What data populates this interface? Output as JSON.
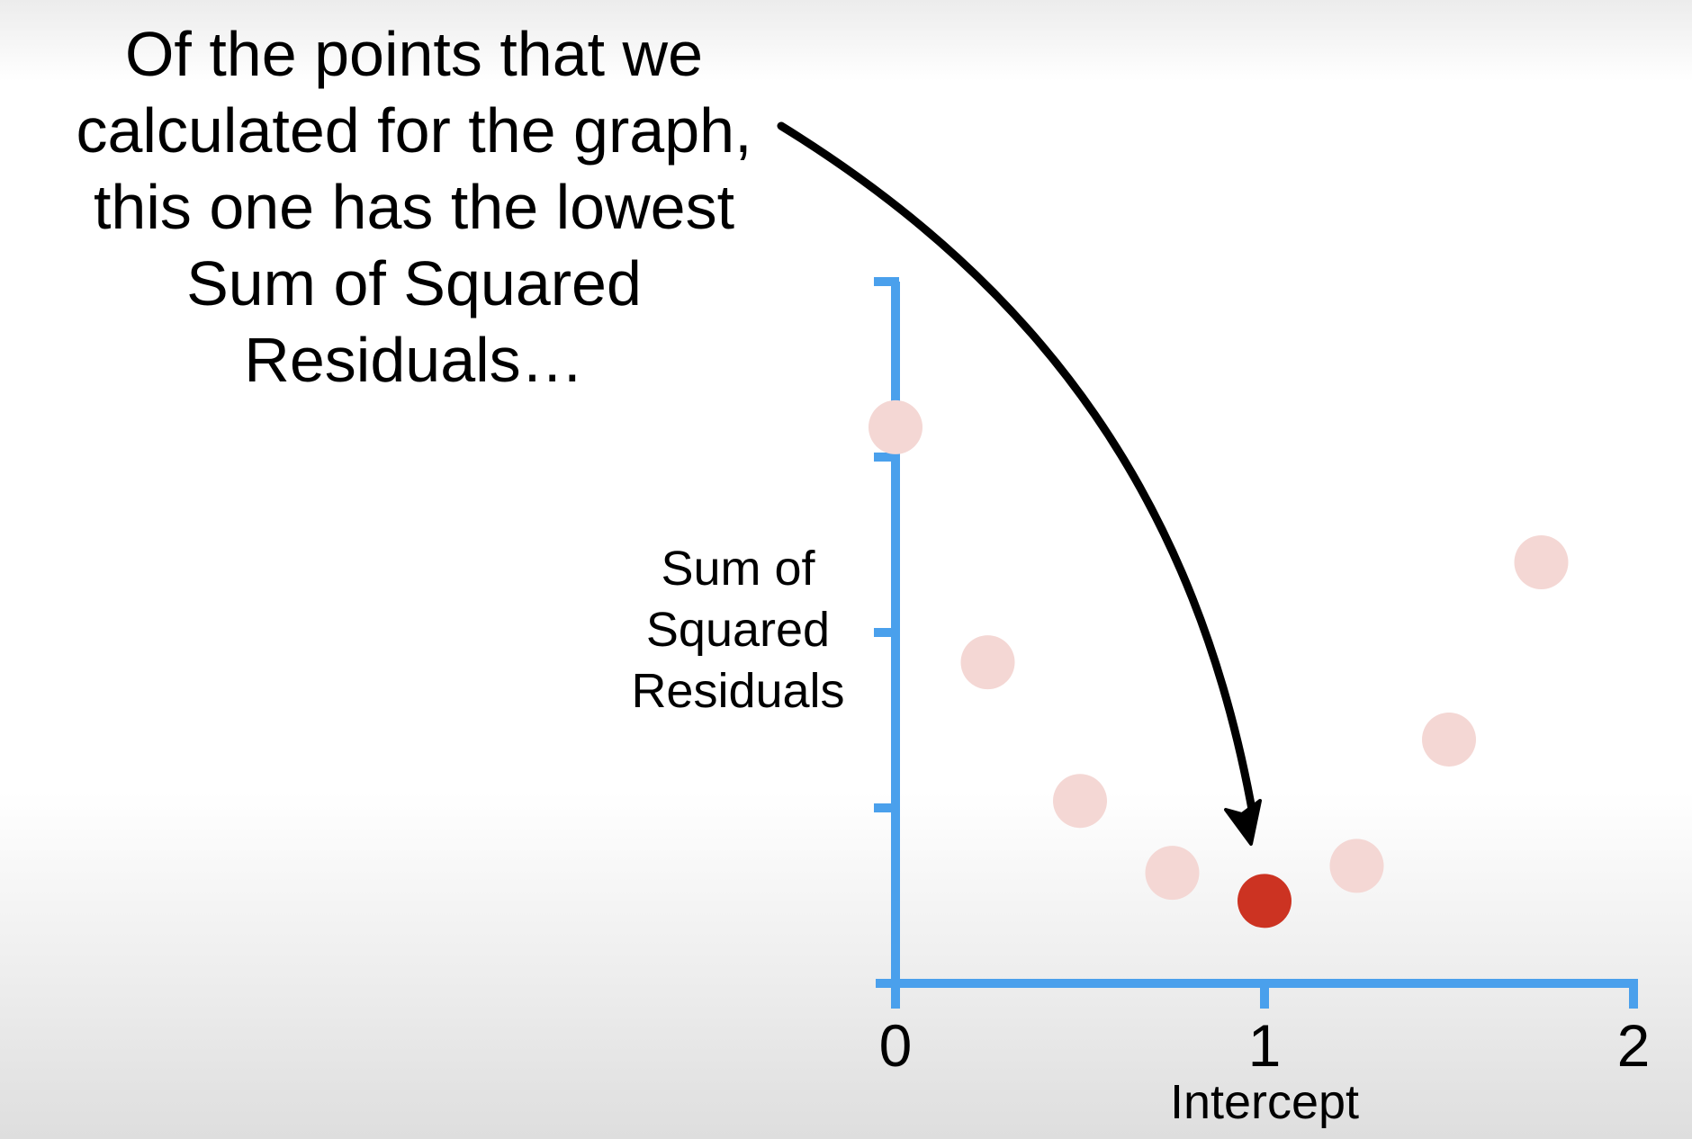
{
  "annotation": {
    "lines": [
      "Of the points that we",
      "calculated for the graph,",
      "this one has the lowest",
      "Sum of Squared",
      "Residuals…"
    ]
  },
  "chart_data": {
    "type": "scatter",
    "xlabel": "Intercept",
    "ylabel_lines": [
      "Sum of",
      "Squared",
      "Residuals"
    ],
    "x_ticks": [
      0,
      1,
      2
    ],
    "xlim": [
      0,
      2
    ],
    "ylim": [
      0,
      4
    ],
    "y_tick_count": 4,
    "grid": false,
    "series": [
      {
        "color": "#f4d7d4",
        "points": [
          {
            "x": 0.0,
            "y": 3.17
          },
          {
            "x": 0.25,
            "y": 1.83
          },
          {
            "x": 0.5,
            "y": 1.04
          },
          {
            "x": 0.75,
            "y": 0.63
          },
          {
            "x": 1.25,
            "y": 0.67
          },
          {
            "x": 1.5,
            "y": 1.39
          },
          {
            "x": 1.75,
            "y": 2.4
          }
        ]
      },
      {
        "color": "#cc3322",
        "highlight": true,
        "points": [
          {
            "x": 1.0,
            "y": 0.47
          }
        ]
      }
    ],
    "axis_color": "#4aa0ec"
  }
}
